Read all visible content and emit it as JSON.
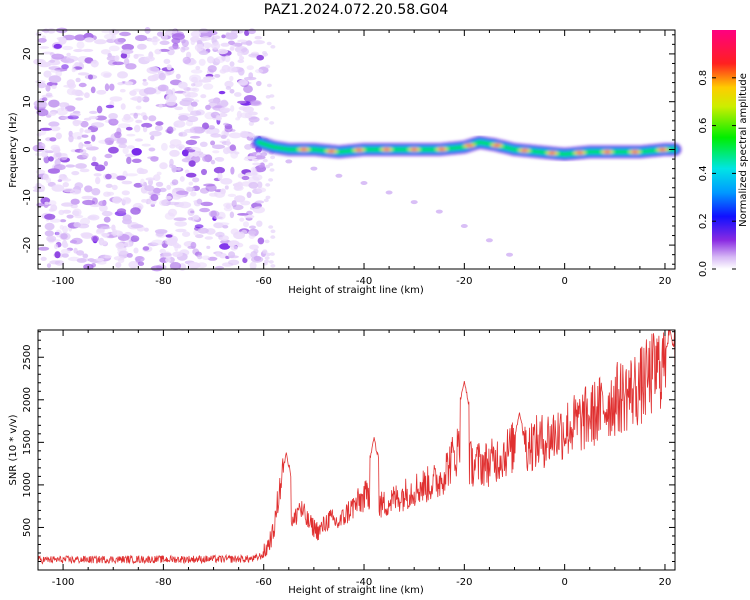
{
  "figure": {
    "title": "PAZ1.2024.072.20.58.G04"
  },
  "chart_data": [
    {
      "type": "heatmap",
      "xlabel": "Height of straight line (km)",
      "ylabel": "Frequency (Hz)",
      "xlim": [
        -105,
        22
      ],
      "ylim": [
        -25,
        25
      ],
      "xticks": [
        -100,
        -80,
        -60,
        -40,
        -20,
        0,
        20
      ],
      "yticks": [
        -20,
        -10,
        0,
        10,
        20
      ],
      "colorbar": {
        "label": "Normalized spectral amplitude",
        "range": [
          0,
          1
        ],
        "ticks": [
          0.0,
          0.2,
          0.4,
          0.6,
          0.8
        ],
        "tick_labels": [
          "0.0",
          "0.2",
          "0.4",
          "0.6",
          "0.8"
        ],
        "colormap": "rainbow (white–purple–blue–cyan–green–yellow–red–magenta)"
      },
      "noise_region_x": [
        -105,
        -60
      ],
      "ridge": {
        "x": [
          -61,
          -58,
          -55,
          -50,
          -45,
          -40,
          -35,
          -30,
          -25,
          -20,
          -17,
          -14,
          -10,
          -5,
          0,
          5,
          10,
          15,
          20,
          22
        ],
        "y": [
          1.5,
          0.5,
          0,
          0,
          -0.5,
          0,
          0,
          0,
          0,
          0.5,
          1.5,
          1,
          0,
          -0.5,
          -1,
          -0.5,
          -0.5,
          -0.5,
          0,
          0
        ]
      },
      "faint_branch": {
        "x": [
          -60,
          -55,
          -50,
          -45,
          -40,
          -35,
          -30,
          -25,
          -20,
          -15,
          -11
        ],
        "y": [
          -1,
          -2.5,
          -4,
          -5.5,
          -7,
          -9,
          -11,
          -13,
          -16,
          -19,
          -22
        ]
      }
    },
    {
      "type": "line",
      "xlabel": "Height of straight line (km)",
      "ylabel": "SNR (10 * v/v)",
      "xlim": [
        -105,
        22
      ],
      "ylim": [
        0,
        2820
      ],
      "xticks": [
        -100,
        -80,
        -60,
        -40,
        -20,
        0,
        20
      ],
      "yticks": [
        500,
        1000,
        1500,
        2000,
        2500
      ],
      "color": "#e03030",
      "profile": {
        "x": [
          -105,
          -62,
          -60,
          -58,
          -57,
          -56,
          -55,
          -54,
          -53,
          -51,
          -49,
          -47,
          -45,
          -43,
          -41,
          -39,
          -37,
          -35,
          -30,
          -25,
          -21,
          -20,
          -19,
          -15,
          -10,
          -5,
          0,
          5,
          10,
          15,
          20,
          22
        ],
        "y": [
          120,
          130,
          180,
          450,
          900,
          1200,
          650,
          550,
          750,
          550,
          450,
          600,
          550,
          700,
          800,
          900,
          750,
          800,
          950,
          1050,
          1450,
          1800,
          1250,
          1250,
          1450,
          1500,
          1650,
          1800,
          2000,
          2150,
          2450,
          2600
        ]
      },
      "spikes": [
        {
          "x": -55.5,
          "y": 1380
        },
        {
          "x": -38,
          "y": 1560
        },
        {
          "x": -20,
          "y": 2220
        },
        {
          "x": -9,
          "y": 1850
        },
        {
          "x": 21,
          "y": 2820
        }
      ]
    }
  ]
}
